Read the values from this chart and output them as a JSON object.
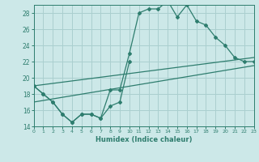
{
  "xlabel": "Humidex (Indice chaleur)",
  "x": [
    0,
    1,
    2,
    3,
    4,
    5,
    6,
    7,
    8,
    9,
    10,
    11,
    12,
    13,
    14,
    15,
    16,
    17,
    18,
    19,
    20,
    21,
    22,
    23
  ],
  "line1": [
    19.0,
    18.0,
    17.0,
    15.5,
    14.5,
    15.5,
    15.5,
    15.0,
    18.5,
    18.5,
    23.0,
    28.0,
    28.5,
    28.5,
    29.5,
    27.5,
    29.0,
    27.0,
    26.5,
    25.0,
    24.0,
    22.5,
    22.0,
    22.0
  ],
  "line2": [
    19.0,
    18.0,
    17.0,
    15.5,
    14.5,
    15.5,
    15.5,
    15.0,
    16.5,
    17.0,
    22.0,
    null,
    null,
    null,
    null,
    null,
    null,
    null,
    null,
    null,
    null,
    null,
    null,
    null
  ],
  "line3_x": [
    0,
    23
  ],
  "line3_y": [
    19.0,
    22.5
  ],
  "line4_x": [
    0,
    23
  ],
  "line4_y": [
    17.0,
    21.5
  ],
  "color": "#2e7d6e",
  "bg_color": "#cce8e8",
  "grid_color": "#aacfcf",
  "ylim": [
    14,
    29
  ],
  "yticks": [
    14,
    16,
    18,
    20,
    22,
    24,
    26,
    28
  ],
  "xlim": [
    0,
    23
  ],
  "marker": "D",
  "markersize": 2.0
}
